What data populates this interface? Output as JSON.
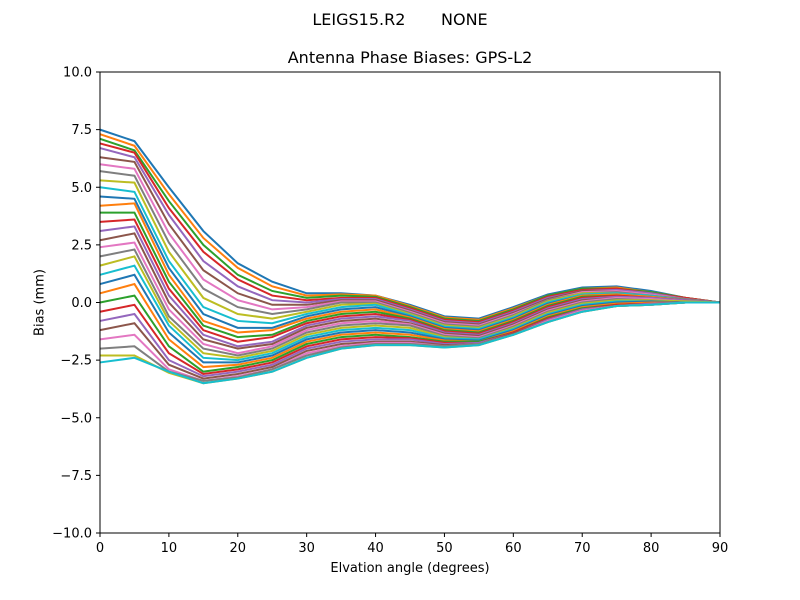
{
  "figure": {
    "suptitle": "LEIGS15.R2       NONE",
    "title": "Antenna Phase Biases: GPS-L2",
    "xlabel": "Elvation angle (degrees)",
    "ylabel": "Bias (mm)"
  },
  "chart_data": {
    "type": "line",
    "title": "Antenna Phase Biases: GPS-L2",
    "suptitle": "LEIGS15.R2       NONE",
    "xlabel": "Elvation angle (degrees)",
    "ylabel": "Bias (mm)",
    "xlim": [
      0,
      90
    ],
    "ylim": [
      -10,
      10
    ],
    "xticks": [
      0,
      10,
      20,
      30,
      40,
      50,
      60,
      70,
      80,
      90
    ],
    "yticks": [
      -10.0,
      -7.5,
      -5.0,
      -2.5,
      0.0,
      2.5,
      5.0,
      7.5,
      10.0
    ],
    "ytick_labels": [
      "−10.0",
      "−7.5",
      "−5.0",
      "−2.5",
      "0.0",
      "2.5",
      "5.0",
      "7.5",
      "10.0"
    ],
    "grid": false,
    "legend": false,
    "x": [
      0,
      5,
      10,
      15,
      20,
      25,
      30,
      35,
      40,
      45,
      50,
      55,
      60,
      65,
      70,
      75,
      80,
      85,
      90
    ],
    "colors": [
      "#1f77b4",
      "#ff7f0e",
      "#2ca02c",
      "#d62728",
      "#9467bd",
      "#8c564b",
      "#e377c2",
      "#7f7f7f",
      "#bcbd22",
      "#17becf"
    ],
    "series": [
      {
        "values": [
          7.5,
          7.0,
          5.0,
          3.1,
          1.7,
          0.9,
          0.4,
          0.4,
          0.3,
          -0.1,
          -0.6,
          -0.7,
          -0.2,
          0.35,
          0.65,
          0.7,
          0.5,
          0.2,
          0.0
        ]
      },
      {
        "values": [
          7.3,
          6.8,
          4.7,
          2.8,
          1.5,
          0.7,
          0.3,
          0.35,
          0.3,
          -0.15,
          -0.65,
          -0.75,
          -0.25,
          0.3,
          0.6,
          0.65,
          0.45,
          0.2,
          0.0
        ]
      },
      {
        "values": [
          7.1,
          6.6,
          4.4,
          2.5,
          1.2,
          0.5,
          0.2,
          0.3,
          0.25,
          -0.2,
          -0.7,
          -0.8,
          -0.3,
          0.3,
          0.6,
          0.6,
          0.45,
          0.2,
          0.0
        ]
      },
      {
        "values": [
          6.9,
          6.5,
          4.1,
          2.2,
          1.0,
          0.3,
          0.1,
          0.2,
          0.2,
          -0.25,
          -0.75,
          -0.85,
          -0.35,
          0.25,
          0.55,
          0.6,
          0.4,
          0.2,
          0.0
        ]
      },
      {
        "values": [
          6.7,
          6.3,
          3.8,
          1.8,
          0.7,
          0.1,
          0.0,
          0.15,
          0.15,
          -0.3,
          -0.8,
          -0.9,
          -0.4,
          0.2,
          0.5,
          0.55,
          0.4,
          0.15,
          0.0
        ]
      },
      {
        "values": [
          6.3,
          6.1,
          3.4,
          1.4,
          0.4,
          -0.1,
          -0.1,
          0.1,
          0.1,
          -0.35,
          -0.85,
          -0.95,
          -0.45,
          0.15,
          0.5,
          0.5,
          0.35,
          0.15,
          0.0
        ]
      },
      {
        "values": [
          6.0,
          5.8,
          3.0,
          1.0,
          0.1,
          -0.3,
          -0.2,
          0.05,
          0.05,
          -0.4,
          -0.9,
          -1.0,
          -0.5,
          0.1,
          0.45,
          0.5,
          0.35,
          0.15,
          0.0
        ]
      },
      {
        "values": [
          5.7,
          5.5,
          2.6,
          0.6,
          -0.2,
          -0.5,
          -0.3,
          0.0,
          0.0,
          -0.45,
          -0.95,
          -1.05,
          -0.55,
          0.1,
          0.4,
          0.45,
          0.3,
          0.15,
          0.0
        ]
      },
      {
        "values": [
          5.3,
          5.2,
          2.2,
          0.2,
          -0.5,
          -0.7,
          -0.4,
          -0.1,
          -0.05,
          -0.5,
          -1.0,
          -1.1,
          -0.6,
          0.05,
          0.4,
          0.4,
          0.3,
          0.1,
          0.0
        ]
      },
      {
        "values": [
          5.0,
          4.8,
          1.8,
          -0.2,
          -0.8,
          -0.9,
          -0.5,
          -0.2,
          -0.1,
          -0.55,
          -1.05,
          -1.15,
          -0.65,
          0.0,
          0.35,
          0.4,
          0.3,
          0.1,
          0.0
        ]
      },
      {
        "values": [
          4.6,
          4.5,
          1.5,
          -0.5,
          -1.1,
          -1.1,
          -0.6,
          -0.3,
          -0.2,
          -0.6,
          -1.1,
          -1.2,
          -0.7,
          -0.05,
          0.3,
          0.35,
          0.25,
          0.1,
          0.0
        ]
      },
      {
        "values": [
          4.2,
          4.3,
          1.2,
          -0.8,
          -1.3,
          -1.2,
          -0.7,
          -0.4,
          -0.3,
          -0.65,
          -1.15,
          -1.25,
          -0.75,
          -0.1,
          0.3,
          0.35,
          0.25,
          0.1,
          0.0
        ]
      },
      {
        "values": [
          3.9,
          3.9,
          0.9,
          -1.0,
          -1.5,
          -1.4,
          -0.8,
          -0.5,
          -0.4,
          -0.7,
          -1.2,
          -1.3,
          -0.8,
          -0.15,
          0.25,
          0.3,
          0.2,
          0.1,
          0.0
        ]
      },
      {
        "values": [
          3.5,
          3.6,
          0.6,
          -1.2,
          -1.7,
          -1.5,
          -0.9,
          -0.6,
          -0.5,
          -0.75,
          -1.25,
          -1.35,
          -0.85,
          -0.2,
          0.2,
          0.3,
          0.2,
          0.1,
          0.0
        ]
      },
      {
        "values": [
          3.1,
          3.3,
          0.3,
          -1.4,
          -1.9,
          -1.7,
          -1.0,
          -0.7,
          -0.6,
          -0.8,
          -1.3,
          -1.4,
          -0.9,
          -0.25,
          0.15,
          0.25,
          0.2,
          0.1,
          0.0
        ]
      },
      {
        "values": [
          2.7,
          3.0,
          0.0,
          -1.6,
          -2.0,
          -1.8,
          -1.1,
          -0.8,
          -0.7,
          -0.9,
          -1.35,
          -1.45,
          -0.95,
          -0.3,
          0.1,
          0.2,
          0.15,
          0.05,
          0.0
        ]
      },
      {
        "values": [
          2.4,
          2.6,
          -0.3,
          -1.8,
          -2.2,
          -1.9,
          -1.2,
          -0.9,
          -0.8,
          -0.95,
          -1.4,
          -1.5,
          -1.0,
          -0.35,
          0.05,
          0.2,
          0.15,
          0.05,
          0.0
        ]
      },
      {
        "values": [
          2.0,
          2.3,
          -0.6,
          -2.0,
          -2.3,
          -2.0,
          -1.3,
          -1.0,
          -0.9,
          -1.0,
          -1.45,
          -1.55,
          -1.05,
          -0.4,
          0.0,
          0.15,
          0.1,
          0.05,
          0.0
        ]
      },
      {
        "values": [
          1.6,
          2.0,
          -0.8,
          -2.2,
          -2.4,
          -2.1,
          -1.4,
          -1.1,
          -1.0,
          -1.1,
          -1.5,
          -1.6,
          -1.1,
          -0.45,
          -0.05,
          0.1,
          0.1,
          0.05,
          0.0
        ]
      },
      {
        "values": [
          1.2,
          1.6,
          -1.0,
          -2.4,
          -2.5,
          -2.2,
          -1.5,
          -1.2,
          -1.1,
          -1.2,
          -1.55,
          -1.6,
          -1.15,
          -0.5,
          -0.1,
          0.05,
          0.05,
          0.0,
          0.0
        ]
      },
      {
        "values": [
          0.8,
          1.2,
          -1.3,
          -2.6,
          -2.6,
          -2.3,
          -1.6,
          -1.3,
          -1.2,
          -1.3,
          -1.6,
          -1.65,
          -1.2,
          -0.55,
          -0.15,
          0.0,
          0.05,
          0.0,
          0.0
        ]
      },
      {
        "values": [
          0.4,
          0.8,
          -1.6,
          -2.8,
          -2.7,
          -2.4,
          -1.7,
          -1.4,
          -1.3,
          -1.4,
          -1.65,
          -1.7,
          -1.25,
          -0.6,
          -0.2,
          -0.05,
          0.0,
          0.0,
          0.0
        ]
      },
      {
        "values": [
          0.0,
          0.3,
          -1.9,
          -3.0,
          -2.8,
          -2.5,
          -1.8,
          -1.5,
          -1.4,
          -1.5,
          -1.7,
          -1.7,
          -1.3,
          -0.65,
          -0.25,
          -0.1,
          -0.05,
          0.0,
          0.0
        ]
      },
      {
        "values": [
          -0.4,
          -0.1,
          -2.2,
          -3.1,
          -2.9,
          -2.6,
          -1.9,
          -1.6,
          -1.5,
          -1.55,
          -1.75,
          -1.75,
          -1.3,
          -0.7,
          -0.3,
          -0.1,
          -0.05,
          0.0,
          0.0
        ]
      },
      {
        "values": [
          -0.8,
          -0.5,
          -2.5,
          -3.2,
          -3.0,
          -2.7,
          -2.0,
          -1.7,
          -1.6,
          -1.6,
          -1.8,
          -1.75,
          -1.35,
          -0.75,
          -0.3,
          -0.15,
          -0.05,
          0.0,
          0.0
        ]
      },
      {
        "values": [
          -1.2,
          -0.9,
          -2.7,
          -3.3,
          -3.1,
          -2.8,
          -2.1,
          -1.8,
          -1.7,
          -1.7,
          -1.85,
          -1.8,
          -1.35,
          -0.8,
          -0.35,
          -0.15,
          -0.1,
          0.0,
          0.0
        ]
      },
      {
        "values": [
          -1.6,
          -1.4,
          -2.9,
          -3.4,
          -3.2,
          -2.9,
          -2.2,
          -1.9,
          -1.75,
          -1.75,
          -1.9,
          -1.8,
          -1.4,
          -0.8,
          -0.35,
          -0.15,
          -0.1,
          0.0,
          0.0
        ]
      },
      {
        "values": [
          -2.0,
          -1.9,
          -3.0,
          -3.4,
          -3.25,
          -2.9,
          -2.3,
          -1.95,
          -1.8,
          -1.8,
          -1.9,
          -1.8,
          -1.4,
          -0.85,
          -0.4,
          -0.15,
          -0.1,
          0.0,
          0.0
        ]
      },
      {
        "values": [
          -2.3,
          -2.3,
          -3.05,
          -3.5,
          -3.3,
          -3.0,
          -2.4,
          -2.0,
          -1.85,
          -1.85,
          -1.95,
          -1.85,
          -1.4,
          -0.85,
          -0.4,
          -0.15,
          -0.1,
          0.0,
          0.0
        ]
      },
      {
        "values": [
          -2.6,
          -2.4,
          -3.0,
          -3.5,
          -3.3,
          -3.0,
          -2.4,
          -2.0,
          -1.85,
          -1.85,
          -1.95,
          -1.85,
          -1.4,
          -0.85,
          -0.4,
          -0.15,
          -0.1,
          0.0,
          0.0
        ]
      }
    ]
  }
}
